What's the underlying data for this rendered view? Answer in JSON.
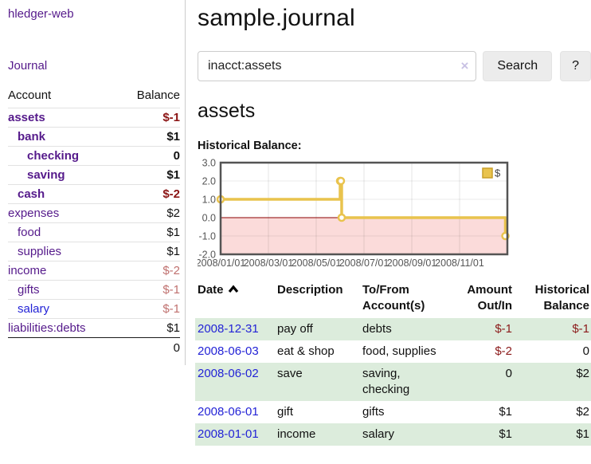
{
  "app": {
    "brand": "hledger-web",
    "nav_journal": "Journal"
  },
  "page": {
    "title": "sample.journal",
    "account_heading": "assets",
    "chart_label": "Historical Balance:"
  },
  "search": {
    "value": "inacct:assets",
    "clear": "×",
    "button": "Search",
    "help": "?"
  },
  "sidebar_accounts": {
    "col_account": "Account",
    "col_balance": "Balance",
    "rows": [
      {
        "name": "assets",
        "balance": "$-1",
        "indent": 0,
        "bold": true,
        "neg": "strong"
      },
      {
        "name": "bank",
        "balance": "$1",
        "indent": 1,
        "bold": true,
        "neg": "none"
      },
      {
        "name": "checking",
        "balance": "0",
        "indent": 2,
        "bold": true,
        "neg": "none"
      },
      {
        "name": "saving",
        "balance": "$1",
        "indent": 2,
        "bold": true,
        "neg": "none"
      },
      {
        "name": "cash",
        "balance": "$-2",
        "indent": 1,
        "bold": true,
        "neg": "strong"
      },
      {
        "name": "expenses",
        "balance": "$2",
        "indent": 0,
        "bold": false,
        "neg": "none"
      },
      {
        "name": "food",
        "balance": "$1",
        "indent": 1,
        "bold": false,
        "neg": "none"
      },
      {
        "name": "supplies",
        "balance": "$1",
        "indent": 1,
        "bold": false,
        "neg": "none"
      },
      {
        "name": "income",
        "balance": "$-2",
        "indent": 0,
        "bold": false,
        "neg": "muted"
      },
      {
        "name": "gifts",
        "balance": "$-1",
        "indent": 1,
        "bold": false,
        "neg": "muted"
      },
      {
        "name": "salary",
        "balance": "$-1",
        "indent": 1,
        "bold": false,
        "neg": "muted",
        "link_color": "blue"
      },
      {
        "name": "liabilities:debts",
        "balance": "$1",
        "indent": 0,
        "bold": false,
        "neg": "none"
      }
    ],
    "total": "0"
  },
  "chart_data": {
    "type": "line",
    "title": "Historical Balance:",
    "style": "step-after",
    "series": [
      {
        "name": "$",
        "color": "#e9c34d",
        "points": [
          {
            "date": "2008-01-01",
            "value": 1
          },
          {
            "date": "2008-06-01",
            "value": 2
          },
          {
            "date": "2008-06-02",
            "value": 2
          },
          {
            "date": "2008-06-03",
            "value": 0
          },
          {
            "date": "2008-12-31",
            "value": -1
          }
        ]
      }
    ],
    "x_ticks": [
      "2008/01/01",
      "2008/03/01",
      "2008/05/01",
      "2008/07/01",
      "2008/09/01",
      "2008/11/01"
    ],
    "y_ticks": [
      3.0,
      2.0,
      1.0,
      0.0,
      -1.0,
      -2.0
    ],
    "ylim": [
      -2,
      3
    ],
    "x_range": [
      "2008-01-01",
      "2009-01-01"
    ],
    "grid": true,
    "negative_region_fill": "#fbdbda",
    "zero_line_color": "#8b0000",
    "legend": {
      "label": "$",
      "position": "top-right"
    }
  },
  "transactions": {
    "headers": {
      "date": "Date",
      "description": "Description",
      "tofrom": "To/From\nAccount(s)",
      "amount": "Amount\nOut/In",
      "balance": "Historical\nBalance"
    },
    "rows": [
      {
        "date": "2008-12-31",
        "description": "pay off",
        "accounts": "debts",
        "amount": "$-1",
        "balance": "$-1",
        "amount_neg": true,
        "balance_neg": true
      },
      {
        "date": "2008-06-03",
        "description": "eat & shop",
        "accounts": "food, supplies",
        "amount": "$-2",
        "balance": "0",
        "amount_neg": true,
        "balance_neg": false
      },
      {
        "date": "2008-06-02",
        "description": "save",
        "accounts": "saving,\nchecking",
        "amount": "0",
        "balance": "$2",
        "amount_neg": false,
        "balance_neg": false
      },
      {
        "date": "2008-06-01",
        "description": "gift",
        "accounts": "gifts",
        "amount": "$1",
        "balance": "$2",
        "amount_neg": false,
        "balance_neg": false
      },
      {
        "date": "2008-01-01",
        "description": "income",
        "accounts": "salary",
        "amount": "$1",
        "balance": "$1",
        "amount_neg": false,
        "balance_neg": false
      }
    ]
  },
  "colors": {
    "link_purple": "#551a8b",
    "link_blue": "#2323d6",
    "negative_strong": "#8b1414",
    "negative_muted": "#c0716f",
    "row_green": "#dcecdc",
    "chart_line": "#e9c34d",
    "chart_negative_fill": "#fbdbda",
    "zero_line": "#8b0000",
    "button_bg": "#ececec"
  }
}
